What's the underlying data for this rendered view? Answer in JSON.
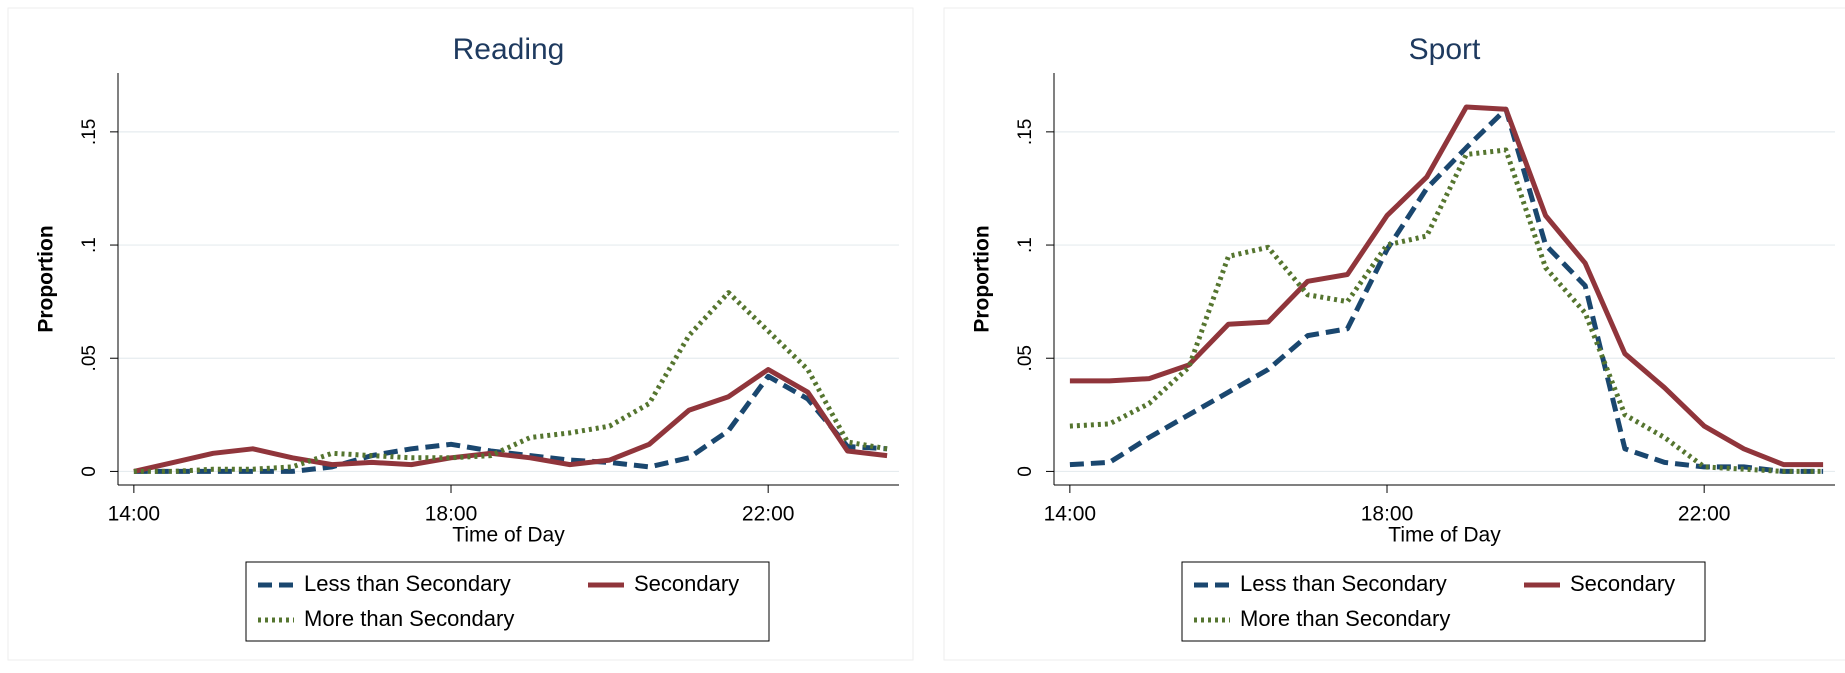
{
  "chart_data": [
    {
      "type": "line",
      "title": "Reading",
      "xlabel": "Time of Day",
      "ylabel": "Proportion",
      "x": [
        14,
        14.5,
        15,
        15.5,
        16,
        16.5,
        17,
        17.5,
        18,
        18.5,
        19,
        19.5,
        20,
        20.5,
        21,
        21.5,
        22,
        22.5,
        23,
        23.5
      ],
      "series": [
        {
          "name": "Less than Secondary",
          "color": "#1a476f",
          "dash": "dashed",
          "values": [
            0,
            0,
            0,
            0,
            0,
            0.002,
            0.007,
            0.01,
            0.012,
            0.009,
            0.007,
            0.005,
            0.004,
            0.002,
            0.006,
            0.018,
            0.042,
            0.032,
            0.011,
            0.01
          ]
        },
        {
          "name": "Secondary",
          "color": "#90353b",
          "dash": "solid",
          "values": [
            0,
            0.004,
            0.008,
            0.01,
            0.006,
            0.003,
            0.004,
            0.003,
            0.006,
            0.008,
            0.006,
            0.003,
            0.005,
            0.012,
            0.027,
            0.033,
            0.045,
            0.035,
            0.009,
            0.007
          ]
        },
        {
          "name": "More than Secondary",
          "color": "#55752f",
          "dash": "dotted",
          "values": [
            0,
            0,
            0.001,
            0.001,
            0.002,
            0.008,
            0.007,
            0.006,
            0.006,
            0.007,
            0.015,
            0.017,
            0.02,
            0.03,
            0.06,
            0.079,
            0.062,
            0.045,
            0.013,
            0.01
          ]
        }
      ],
      "xlim": [
        13.8,
        23.65
      ],
      "ylim": [
        -0.006,
        0.176
      ],
      "xticks": [
        {
          "value": 14,
          "label": "14:00"
        },
        {
          "value": 18,
          "label": "18:00"
        },
        {
          "value": 22,
          "label": "22:00"
        }
      ],
      "yticks": [
        0,
        {
          "value": 0.05,
          "label": ".05"
        },
        {
          "value": 0.1,
          "label": ".1"
        },
        {
          "value": 0.15,
          "label": ".15"
        }
      ],
      "grid": true
    },
    {
      "type": "line",
      "title": "Sport",
      "xlabel": "Time of Day",
      "ylabel": "Proportion",
      "x": [
        14,
        14.5,
        15,
        15.5,
        16,
        16.5,
        17,
        17.5,
        18,
        18.5,
        19,
        19.5,
        20,
        20.5,
        21,
        21.5,
        22,
        22.5,
        23,
        23.5
      ],
      "series": [
        {
          "name": "Less than Secondary",
          "color": "#1a476f",
          "dash": "dashed",
          "values": [
            0.003,
            0.004,
            0.015,
            0.025,
            0.035,
            0.045,
            0.06,
            0.063,
            0.098,
            0.125,
            0.143,
            0.16,
            0.1,
            0.082,
            0.01,
            0.004,
            0.002,
            0.002,
            0,
            0
          ]
        },
        {
          "name": "Secondary",
          "color": "#90353b",
          "dash": "solid",
          "values": [
            0.04,
            0.04,
            0.041,
            0.047,
            0.065,
            0.066,
            0.084,
            0.087,
            0.113,
            0.13,
            0.161,
            0.16,
            0.113,
            0.092,
            0.052,
            0.037,
            0.02,
            0.01,
            0.003,
            0.003
          ]
        },
        {
          "name": "More than Secondary",
          "color": "#55752f",
          "dash": "dotted",
          "values": [
            0.02,
            0.021,
            0.03,
            0.046,
            0.095,
            0.099,
            0.078,
            0.075,
            0.1,
            0.104,
            0.14,
            0.142,
            0.09,
            0.07,
            0.025,
            0.015,
            0.002,
            0.001,
            0,
            0
          ]
        }
      ],
      "xlim": [
        13.8,
        23.65
      ],
      "ylim": [
        -0.006,
        0.176
      ],
      "xticks": [
        {
          "value": 14,
          "label": "14:00"
        },
        {
          "value": 18,
          "label": "18:00"
        },
        {
          "value": 22,
          "label": "22:00"
        }
      ],
      "yticks": [
        0,
        {
          "value": 0.05,
          "label": ".05"
        },
        {
          "value": 0.1,
          "label": ".1"
        },
        {
          "value": 0.15,
          "label": ".15"
        }
      ],
      "grid": true
    }
  ]
}
